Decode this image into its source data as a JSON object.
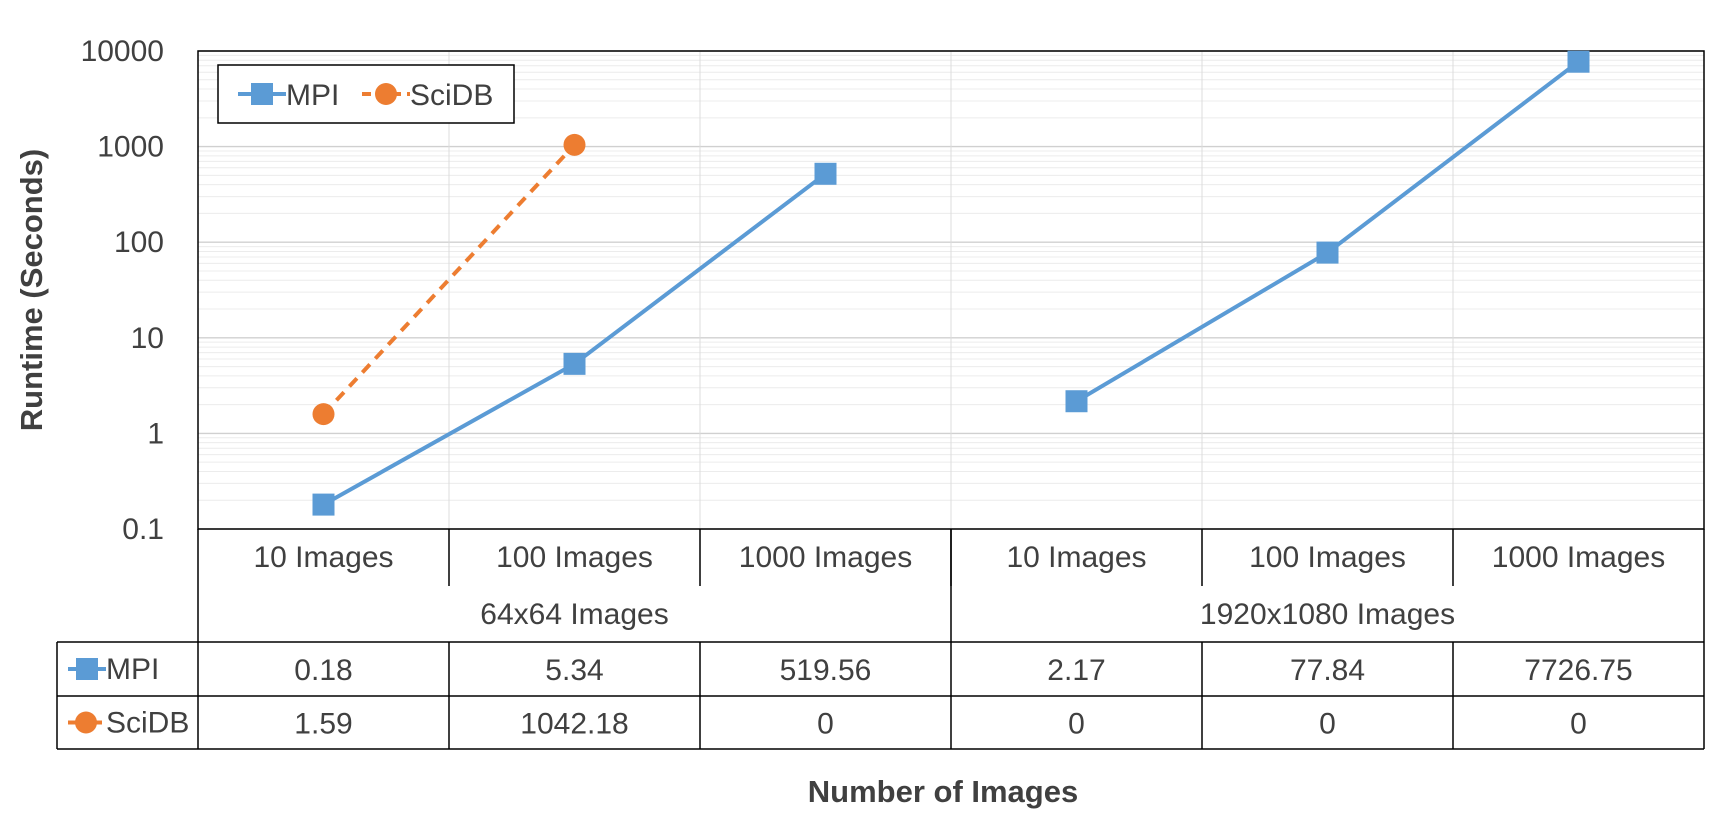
{
  "chart_data": {
    "type": "line",
    "ylabel": "Runtime (Seconds)",
    "xlabel": "Number of Images",
    "yscale": "log",
    "ylim": [
      0.1,
      10000
    ],
    "yticks": [
      "0.1",
      "1",
      "10",
      "100",
      "1000",
      "10000"
    ],
    "grid": true,
    "legend_position": "top-left",
    "categories": [
      "10 Images",
      "100 Images",
      "1000 Images",
      "10 Images",
      "100 Images",
      "1000 Images"
    ],
    "groups": [
      {
        "label": "64x64 Images",
        "span": 3
      },
      {
        "label": "1920x1080 Images",
        "span": 3
      }
    ],
    "series": [
      {
        "name": "MPI",
        "color": "#5B9BD5",
        "marker": "square",
        "line": "solid",
        "values": [
          0.18,
          5.34,
          519.56,
          2.17,
          77.84,
          7726.75
        ],
        "table": [
          "0.18",
          "5.34",
          "519.56",
          "2.17",
          "77.84",
          "7726.75"
        ]
      },
      {
        "name": "SciDB",
        "color": "#ED7D31",
        "marker": "circle",
        "line": "dashed",
        "values": [
          1.59,
          1042.18,
          null,
          null,
          null,
          null
        ],
        "table": [
          "1.59",
          "1042.18",
          "0",
          "0",
          "0",
          "0"
        ]
      }
    ]
  }
}
